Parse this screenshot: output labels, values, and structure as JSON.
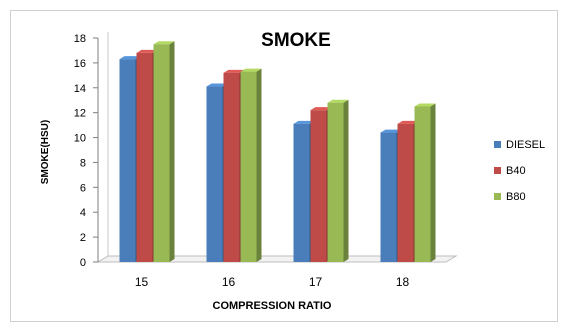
{
  "chart_data": {
    "type": "bar",
    "title": "SMOKE",
    "xlabel": "COMPRESSION RATIO",
    "ylabel": "SMOKE(HSU)",
    "categories": [
      "15",
      "16",
      "17",
      "18"
    ],
    "ylim": [
      0,
      18
    ],
    "yticks": [
      "0",
      "2",
      "4",
      "6",
      "8",
      "10",
      "12",
      "14",
      "16",
      "18"
    ],
    "grid": false,
    "legend_position": "right",
    "series": [
      {
        "name": "DIESEL",
        "color": "#4a7ebb",
        "values": [
          16.3,
          14.1,
          11.1,
          10.4
        ]
      },
      {
        "name": "B40",
        "color": "#be4b48",
        "values": [
          16.8,
          15.2,
          12.2,
          11.1
        ]
      },
      {
        "name": "B80",
        "color": "#98b954",
        "values": [
          17.5,
          15.3,
          12.8,
          12.5
        ]
      }
    ]
  }
}
